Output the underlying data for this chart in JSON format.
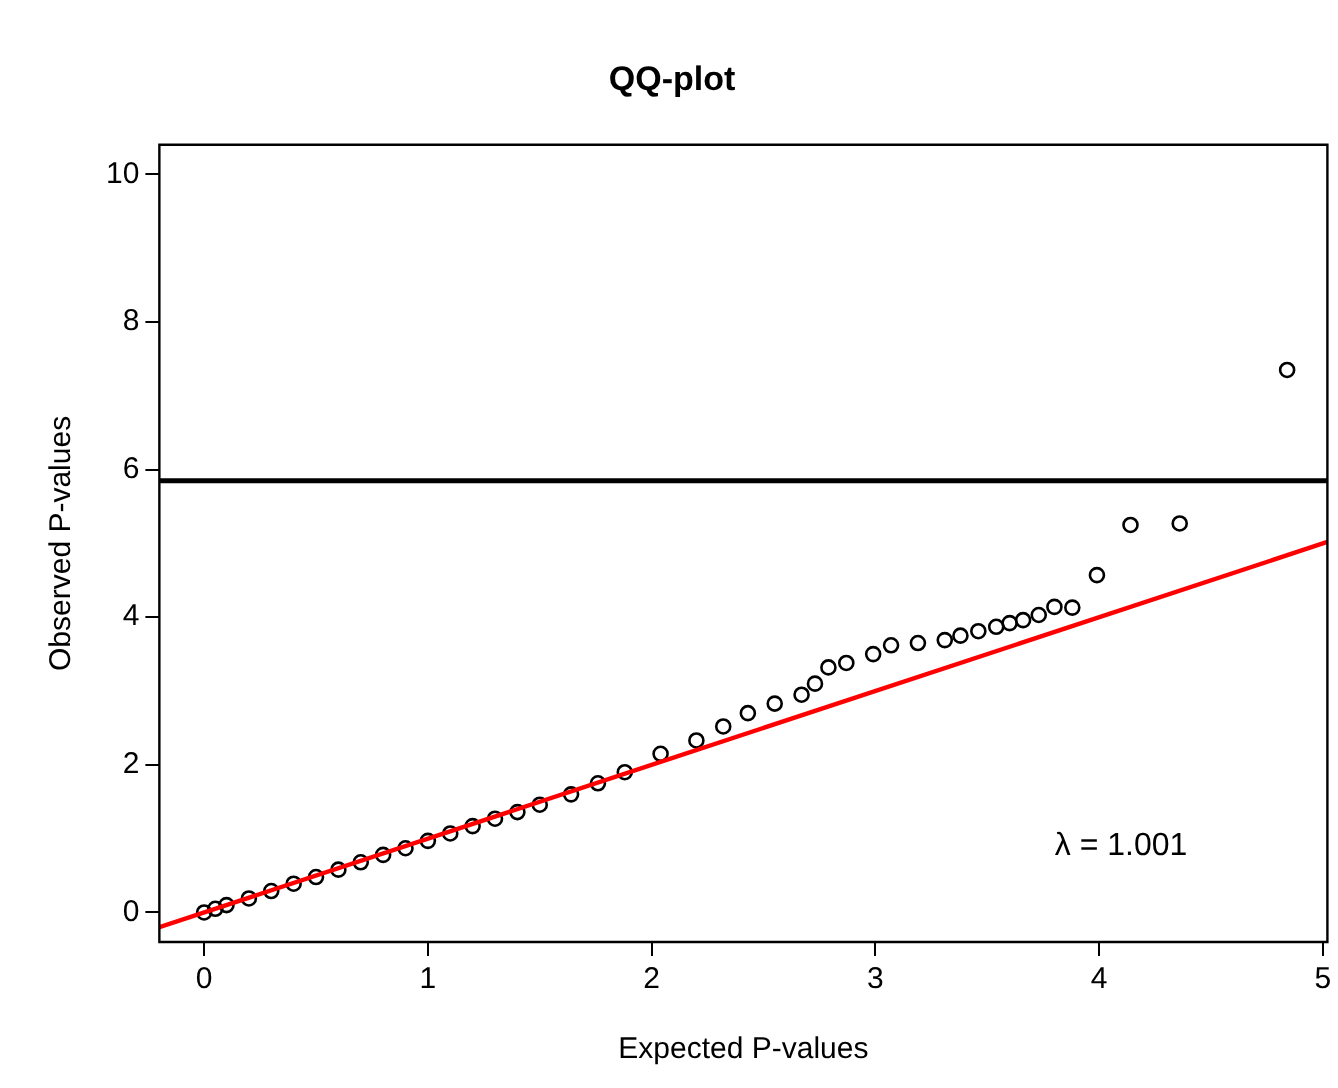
{
  "chart_data": {
    "type": "scatter",
    "title": "QQ-plot",
    "xlabel": "Expected P-values",
    "ylabel": "Observed P-values",
    "xlim": [
      -0.2,
      5.02
    ],
    "ylim": [
      -0.4,
      10.4
    ],
    "xticks": [
      0,
      1,
      2,
      3,
      4,
      5
    ],
    "yticks": [
      0,
      2,
      4,
      6,
      8,
      10
    ],
    "grid": false,
    "legend": false,
    "marker": "circle",
    "series": [
      {
        "type": "scatter",
        "color": "#000000",
        "x": [
          0,
          0.05,
          0.1,
          0.2,
          0.3,
          0.4,
          0.5,
          0.6,
          0.7,
          0.8,
          0.9,
          1.0,
          1.1,
          1.2,
          1.3,
          1.4,
          1.5,
          1.64,
          1.76,
          1.88,
          2.04,
          2.2,
          2.32,
          2.43,
          2.55,
          2.67,
          2.73,
          2.79,
          2.87,
          2.99,
          3.07,
          3.19,
          3.31,
          3.38,
          3.46,
          3.54,
          3.6,
          3.66,
          3.73,
          3.8,
          3.88,
          3.99,
          4.14,
          4.36,
          4.84
        ],
        "values": [
          0,
          0.05,
          0.1,
          0.19,
          0.29,
          0.39,
          0.48,
          0.58,
          0.68,
          0.78,
          0.87,
          0.97,
          1.07,
          1.17,
          1.27,
          1.36,
          1.46,
          1.6,
          1.75,
          1.9,
          2.15,
          2.33,
          2.52,
          2.7,
          2.83,
          2.95,
          3.1,
          3.32,
          3.38,
          3.5,
          3.62,
          3.65,
          3.69,
          3.75,
          3.81,
          3.87,
          3.92,
          3.96,
          4.03,
          4.14,
          4.13,
          4.57,
          5.25,
          5.27,
          7.35
        ]
      },
      {
        "type": "line",
        "marker": "none",
        "color": "#ff0000",
        "x": [
          -0.2,
          5.02
        ],
        "values": [
          -0.2,
          5.02
        ]
      }
    ],
    "ref_lines": [
      {
        "axis": "y",
        "value": 5.85,
        "color": "#000000"
      }
    ],
    "annotations": [
      "λ = 1.001"
    ]
  }
}
